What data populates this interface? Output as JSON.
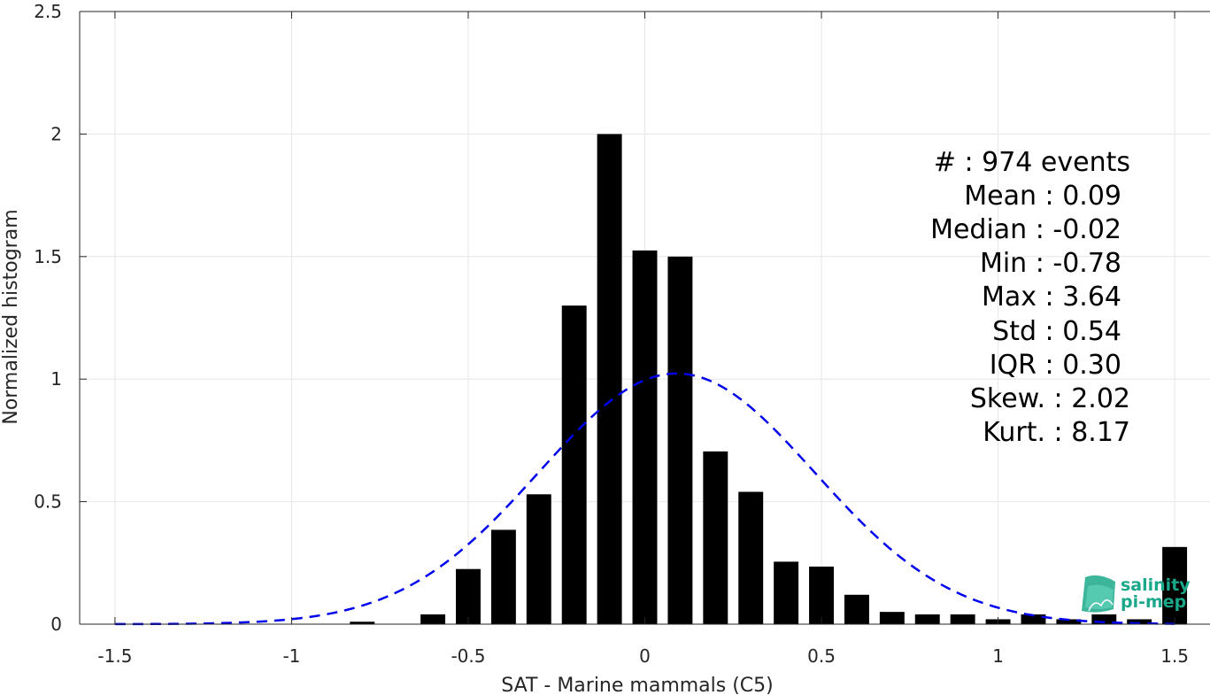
{
  "chart_data": {
    "type": "bar",
    "xlabel": "SAT - Marine mammals (C5)",
    "ylabel": "Normalized histogram",
    "xlim": [
      -1.6,
      1.6
    ],
    "ylim": [
      0,
      2.5
    ],
    "xticks": [
      -1.5,
      -1,
      -0.5,
      0,
      0.5,
      1,
      1.5
    ],
    "xtick_labels": [
      "-1.5",
      "-1",
      "-0.5",
      "0",
      "0.5",
      "1",
      "1.5"
    ],
    "yticks": [
      0,
      0.5,
      1,
      1.5,
      2,
      2.5
    ],
    "ytick_labels": [
      "0",
      "0.5",
      "1",
      "1.5",
      "2",
      "2.5"
    ],
    "grid": true,
    "bar_color": "#000000",
    "bar_width": 0.07,
    "bars": [
      {
        "x": -0.8,
        "y": 0.01
      },
      {
        "x": -0.6,
        "y": 0.04
      },
      {
        "x": -0.5,
        "y": 0.225
      },
      {
        "x": -0.4,
        "y": 0.385
      },
      {
        "x": -0.3,
        "y": 0.53
      },
      {
        "x": -0.2,
        "y": 1.3
      },
      {
        "x": -0.1,
        "y": 2.0
      },
      {
        "x": 0.0,
        "y": 1.525
      },
      {
        "x": 0.1,
        "y": 1.5
      },
      {
        "x": 0.2,
        "y": 0.705
      },
      {
        "x": 0.3,
        "y": 0.54
      },
      {
        "x": 0.4,
        "y": 0.255
      },
      {
        "x": 0.5,
        "y": 0.235
      },
      {
        "x": 0.6,
        "y": 0.12
      },
      {
        "x": 0.7,
        "y": 0.05
      },
      {
        "x": 0.8,
        "y": 0.04
      },
      {
        "x": 0.9,
        "y": 0.04
      },
      {
        "x": 1.0,
        "y": 0.02
      },
      {
        "x": 1.1,
        "y": 0.04
      },
      {
        "x": 1.2,
        "y": 0.02
      },
      {
        "x": 1.3,
        "y": 0.04
      },
      {
        "x": 1.4,
        "y": 0.02
      },
      {
        "x": 1.5,
        "y": 0.315
      }
    ],
    "fit_curve": {
      "style": "dashed",
      "color": "#0000ee",
      "mean": 0.09,
      "std": 0.39,
      "x_range": [
        -1.5,
        1.5
      ]
    }
  },
  "stats": {
    "count": "#  : 974 events",
    "mean": "Mean : 0.09",
    "median": "Median : -0.02",
    "min": "Min : -0.78",
    "max": "Max : 3.64",
    "std": "Std : 0.54",
    "iqr": "IQR : 0.30",
    "skew": "Skew. : 2.02",
    "kurt": "Kurt. : 8.17"
  },
  "logo": {
    "line1": "salinity",
    "line2": "pi-mep",
    "color": "#1aa88a"
  }
}
